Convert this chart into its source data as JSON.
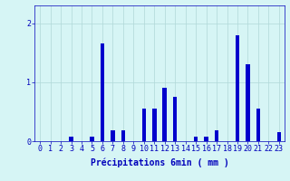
{
  "hours": [
    0,
    1,
    2,
    3,
    4,
    5,
    6,
    7,
    8,
    9,
    10,
    11,
    12,
    13,
    14,
    15,
    16,
    17,
    18,
    19,
    20,
    21,
    22,
    23
  ],
  "values": [
    0.0,
    0.0,
    0.0,
    0.08,
    0.0,
    0.08,
    1.65,
    0.18,
    0.18,
    0.0,
    0.55,
    0.55,
    0.9,
    0.75,
    0.0,
    0.08,
    0.08,
    0.18,
    0.0,
    1.8,
    1.3,
    0.55,
    0.0,
    0.15
  ],
  "bar_color": "#0000cc",
  "bg_color": "#d6f5f5",
  "grid_color": "#b0d8d8",
  "xlabel": "Précipitations 6min ( mm )",
  "ylabel_ticks": [
    0,
    1,
    2
  ],
  "ylim": [
    0,
    2.3
  ],
  "xlim": [
    -0.5,
    23.5
  ],
  "tick_color": "#0000bb",
  "label_color": "#0000bb",
  "font_size_label": 7,
  "font_size_tick": 6,
  "bar_width": 0.4
}
